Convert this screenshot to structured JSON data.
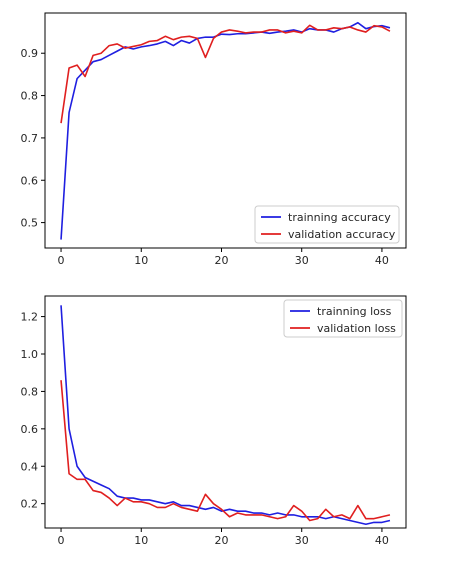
{
  "chart_data": [
    {
      "type": "line",
      "xlim": [
        -2,
        43
      ],
      "ylim": [
        0.44,
        0.995
      ],
      "xticks": [
        0,
        10,
        20,
        30,
        40
      ],
      "yticks": [
        0.5,
        0.6,
        0.7,
        0.8,
        0.9
      ],
      "xtick_labels": [
        "0",
        "10",
        "20",
        "30",
        "40"
      ],
      "ytick_labels": [
        "0.5",
        "0.6",
        "0.7",
        "0.8",
        "0.9"
      ],
      "legend_position": "lower-right",
      "grid": false,
      "x": [
        0,
        1,
        2,
        3,
        4,
        5,
        6,
        7,
        8,
        9,
        10,
        11,
        12,
        13,
        14,
        15,
        16,
        17,
        18,
        19,
        20,
        21,
        22,
        23,
        24,
        25,
        26,
        27,
        28,
        29,
        30,
        31,
        32,
        33,
        34,
        35,
        36,
        37,
        38,
        39,
        40,
        41
      ],
      "series": [
        {
          "name": "trainning accuracy",
          "color": "#1f1fe0",
          "values": [
            0.46,
            0.76,
            0.84,
            0.86,
            0.88,
            0.885,
            0.895,
            0.905,
            0.915,
            0.91,
            0.915,
            0.918,
            0.922,
            0.928,
            0.918,
            0.93,
            0.924,
            0.935,
            0.938,
            0.938,
            0.945,
            0.944,
            0.946,
            0.946,
            0.948,
            0.95,
            0.947,
            0.95,
            0.952,
            0.955,
            0.95,
            0.958,
            0.955,
            0.955,
            0.95,
            0.958,
            0.962,
            0.972,
            0.958,
            0.963,
            0.965,
            0.96
          ]
        },
        {
          "name": "validation accuracy",
          "color": "#e01f1f",
          "values": [
            0.735,
            0.865,
            0.872,
            0.845,
            0.895,
            0.9,
            0.918,
            0.922,
            0.912,
            0.916,
            0.92,
            0.928,
            0.93,
            0.94,
            0.932,
            0.938,
            0.94,
            0.935,
            0.89,
            0.935,
            0.95,
            0.955,
            0.952,
            0.948,
            0.95,
            0.95,
            0.955,
            0.955,
            0.948,
            0.952,
            0.948,
            0.966,
            0.955,
            0.955,
            0.96,
            0.958,
            0.962,
            0.955,
            0.95,
            0.965,
            0.962,
            0.952
          ]
        }
      ]
    },
    {
      "type": "line",
      "xlim": [
        -2,
        43
      ],
      "ylim": [
        0.07,
        1.31
      ],
      "xticks": [
        0,
        10,
        20,
        30,
        40
      ],
      "yticks": [
        0.2,
        0.4,
        0.6,
        0.8,
        1.0,
        1.2
      ],
      "xtick_labels": [
        "0",
        "10",
        "20",
        "30",
        "40"
      ],
      "ytick_labels": [
        "0.2",
        "0.4",
        "0.6",
        "0.8",
        "1.0",
        "1.2"
      ],
      "legend_position": "upper-right",
      "grid": false,
      "x": [
        0,
        1,
        2,
        3,
        4,
        5,
        6,
        7,
        8,
        9,
        10,
        11,
        12,
        13,
        14,
        15,
        16,
        17,
        18,
        19,
        20,
        21,
        22,
        23,
        24,
        25,
        26,
        27,
        28,
        29,
        30,
        31,
        32,
        33,
        34,
        35,
        36,
        37,
        38,
        39,
        40,
        41
      ],
      "series": [
        {
          "name": "trainning loss",
          "color": "#1f1fe0",
          "values": [
            1.26,
            0.6,
            0.4,
            0.34,
            0.32,
            0.3,
            0.28,
            0.24,
            0.23,
            0.23,
            0.22,
            0.22,
            0.21,
            0.2,
            0.21,
            0.19,
            0.19,
            0.18,
            0.17,
            0.18,
            0.16,
            0.17,
            0.16,
            0.16,
            0.15,
            0.15,
            0.14,
            0.15,
            0.14,
            0.14,
            0.13,
            0.13,
            0.13,
            0.12,
            0.13,
            0.12,
            0.11,
            0.1,
            0.09,
            0.1,
            0.1,
            0.11
          ]
        },
        {
          "name": "validation loss",
          "color": "#e01f1f",
          "values": [
            0.86,
            0.36,
            0.33,
            0.33,
            0.27,
            0.26,
            0.23,
            0.19,
            0.23,
            0.21,
            0.21,
            0.2,
            0.18,
            0.18,
            0.2,
            0.18,
            0.17,
            0.16,
            0.25,
            0.2,
            0.17,
            0.13,
            0.15,
            0.14,
            0.14,
            0.14,
            0.13,
            0.12,
            0.13,
            0.19,
            0.16,
            0.11,
            0.12,
            0.17,
            0.13,
            0.14,
            0.12,
            0.19,
            0.12,
            0.12,
            0.13,
            0.14
          ]
        }
      ]
    }
  ]
}
